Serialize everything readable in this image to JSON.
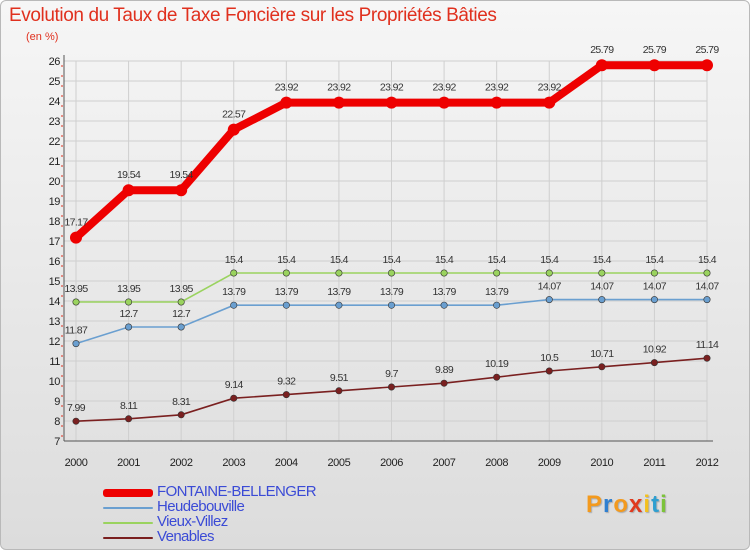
{
  "title": "Evolution du Taux de Taxe Foncière sur les Propriétés Bâties",
  "unit_label": "(en %)",
  "chart_data": {
    "type": "line",
    "title": "Evolution du Taux de Taxe Foncière sur les Propriétés Bâties",
    "ylabel": "(en %)",
    "xlabel": "",
    "ylim": [
      7,
      26
    ],
    "yticks": [
      7,
      8,
      9,
      10,
      11,
      12,
      13,
      14,
      15,
      16,
      17,
      18,
      19,
      20,
      21,
      22,
      23,
      24,
      25,
      26
    ],
    "x": [
      "2000",
      "2001",
      "2002",
      "2003",
      "2004",
      "2005",
      "2006",
      "2007",
      "2008",
      "2009",
      "2010",
      "2011",
      "2012"
    ],
    "grid": true,
    "legend_position": "bottom-left",
    "series": [
      {
        "name": "FONTAINE-BELLENGER",
        "color": "#ee0000",
        "values": [
          17.17,
          19.54,
          19.54,
          22.57,
          23.92,
          23.92,
          23.92,
          23.92,
          23.92,
          23.92,
          25.79,
          25.79,
          25.79
        ],
        "labels": [
          "17.17",
          "19.54",
          "19.54",
          "22.57",
          "23.92",
          "23.92",
          "23.92",
          "23.92",
          "23.92",
          "23.92",
          "25.79",
          "25.79",
          "25.79"
        ]
      },
      {
        "name": "Heudebouville",
        "color": "#6a9fd0",
        "values": [
          11.87,
          12.7,
          12.7,
          13.79,
          13.79,
          13.79,
          13.79,
          13.79,
          13.79,
          14.07,
          14.07,
          14.07,
          14.07
        ],
        "labels": [
          "11.87",
          "12.7",
          "12.7",
          "13.79",
          "13.79",
          "13.79",
          "13.79",
          "13.79",
          "13.79",
          "14.07",
          "14.07",
          "14.07",
          "14.07"
        ]
      },
      {
        "name": "Vieux-Villez",
        "color": "#9ad35f",
        "values": [
          13.95,
          13.95,
          13.95,
          15.4,
          15.4,
          15.4,
          15.4,
          15.4,
          15.4,
          15.4,
          15.4,
          15.4,
          15.4
        ],
        "labels": [
          "13.95",
          "13.95",
          "13.95",
          "15.4",
          "15.4",
          "15.4",
          "15.4",
          "15.4",
          "15.4",
          "15.4",
          "15.4",
          "15.4",
          "15.4"
        ]
      },
      {
        "name": "Venables",
        "color": "#7a2020",
        "values": [
          7.99,
          8.11,
          8.31,
          9.14,
          9.32,
          9.51,
          9.7,
          9.89,
          10.19,
          10.5,
          10.71,
          10.92,
          11.14
        ],
        "labels": [
          "7.99",
          "8.11",
          "8.31",
          "9.14",
          "9.32",
          "9.51",
          "9.7",
          "9.89",
          "10.19",
          "10.5",
          "10.71",
          "10.92",
          "11.14"
        ]
      }
    ]
  },
  "legend": {
    "items": [
      {
        "label": "FONTAINE-BELLENGER",
        "color": "#ee0000"
      },
      {
        "label": "Heudebouville",
        "color": "#6a9fd0"
      },
      {
        "label": "Vieux-Villez",
        "color": "#9ad35f"
      },
      {
        "label": "Venables",
        "color": "#7a2020"
      }
    ]
  },
  "logo": {
    "letters": [
      "P",
      "r",
      "o",
      "x",
      "i",
      "t",
      "i"
    ],
    "colors": [
      "#f39a1e",
      "#2f7fd0",
      "#f39a1e",
      "#e03a1e",
      "#f3c01e",
      "#2f9fd0",
      "#7cc33a"
    ]
  }
}
